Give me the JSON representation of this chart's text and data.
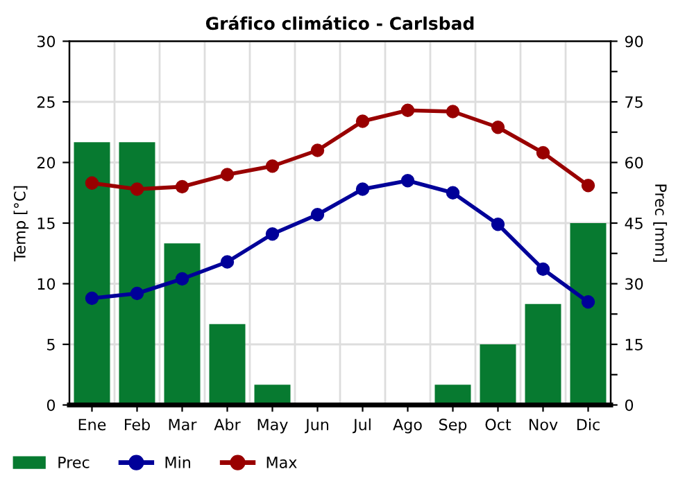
{
  "chart_data": {
    "type": "bar",
    "title": "Gráfico climático - Carlsbad",
    "ylabel": "Temp [°C]",
    "y2label": "Prec [mm]",
    "categories": [
      "Ene",
      "Feb",
      "Mar",
      "Abr",
      "May",
      "Jun",
      "Jul",
      "Ago",
      "Sep",
      "Oct",
      "Nov",
      "Dic"
    ],
    "series": [
      {
        "name": "Prec",
        "axis": "y2",
        "color": "#077a30",
        "values": [
          65,
          65,
          40,
          20,
          5,
          0,
          0,
          0,
          5,
          15,
          25,
          45
        ]
      },
      {
        "name": "Min",
        "type": "line",
        "color": "#000099",
        "values": [
          8.8,
          9.2,
          10.4,
          11.8,
          14.1,
          15.7,
          17.8,
          18.5,
          17.5,
          14.9,
          11.2,
          8.5
        ]
      },
      {
        "name": "Max",
        "type": "line",
        "color": "#990000",
        "values": [
          18.3,
          17.8,
          18.0,
          19.0,
          19.7,
          21.0,
          23.4,
          24.3,
          24.2,
          22.9,
          20.8,
          18.1
        ]
      }
    ],
    "ylim": [
      0,
      30
    ],
    "yticks": [
      0,
      5,
      10,
      15,
      20,
      25,
      30
    ],
    "y2lim": [
      0,
      90
    ],
    "y2ticks": [
      0,
      {
        "value": 7.5,
        "label": null
      },
      15,
      {
        "value": 22.5,
        "label": null
      },
      30,
      {
        "value": 37.5,
        "label": null
      },
      45,
      {
        "value": 52.5,
        "label": null
      },
      60,
      {
        "value": 67.5,
        "label": null
      },
      75,
      {
        "value": 82.5,
        "label": null
      },
      90
    ],
    "grid": true,
    "legend": "bottom",
    "marker": "circle",
    "line_style": "solid"
  }
}
